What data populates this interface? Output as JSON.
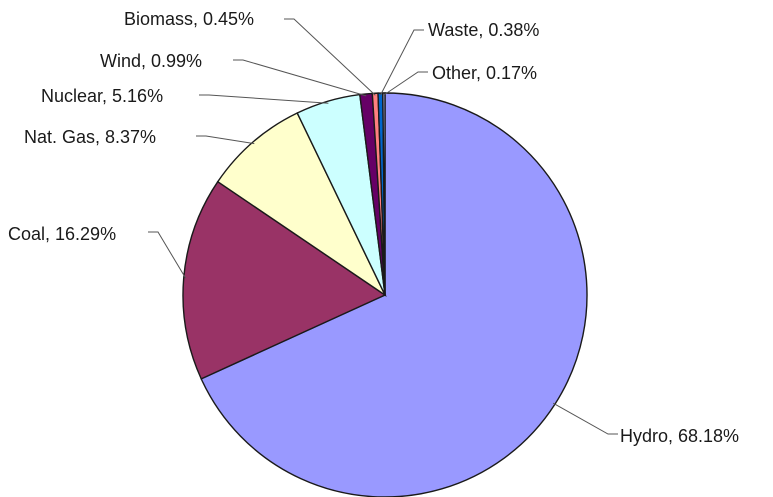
{
  "chart_data": {
    "type": "pie",
    "title": "",
    "slices": [
      {
        "label": "Hydro, 68.18%",
        "name": "Hydro",
        "value": 68.18,
        "color": "#9999ff"
      },
      {
        "label": "Coal, 16.29%",
        "name": "Coal",
        "value": 16.29,
        "color": "#993366"
      },
      {
        "label": "Nat. Gas, 8.37%",
        "name": "Nat. Gas",
        "value": 8.37,
        "color": "#ffffcc"
      },
      {
        "label": "Nuclear, 5.16%",
        "name": "Nuclear",
        "value": 5.16,
        "color": "#ccffff"
      },
      {
        "label": "Wind, 0.99%",
        "name": "Wind",
        "value": 0.99,
        "color": "#660066"
      },
      {
        "label": "Biomass, 0.45%",
        "name": "Biomass",
        "value": 0.45,
        "color": "#ff8080"
      },
      {
        "label": "Waste, 0.38%",
        "name": "Waste",
        "value": 0.38,
        "color": "#0066cc"
      },
      {
        "label": "Other, 0.17%",
        "name": "Other",
        "value": 0.17,
        "color": "#ccccff"
      }
    ],
    "start_angle_deg": 0,
    "direction": "clockwise",
    "legend": "none",
    "data_labels": "outside with leader lines"
  }
}
